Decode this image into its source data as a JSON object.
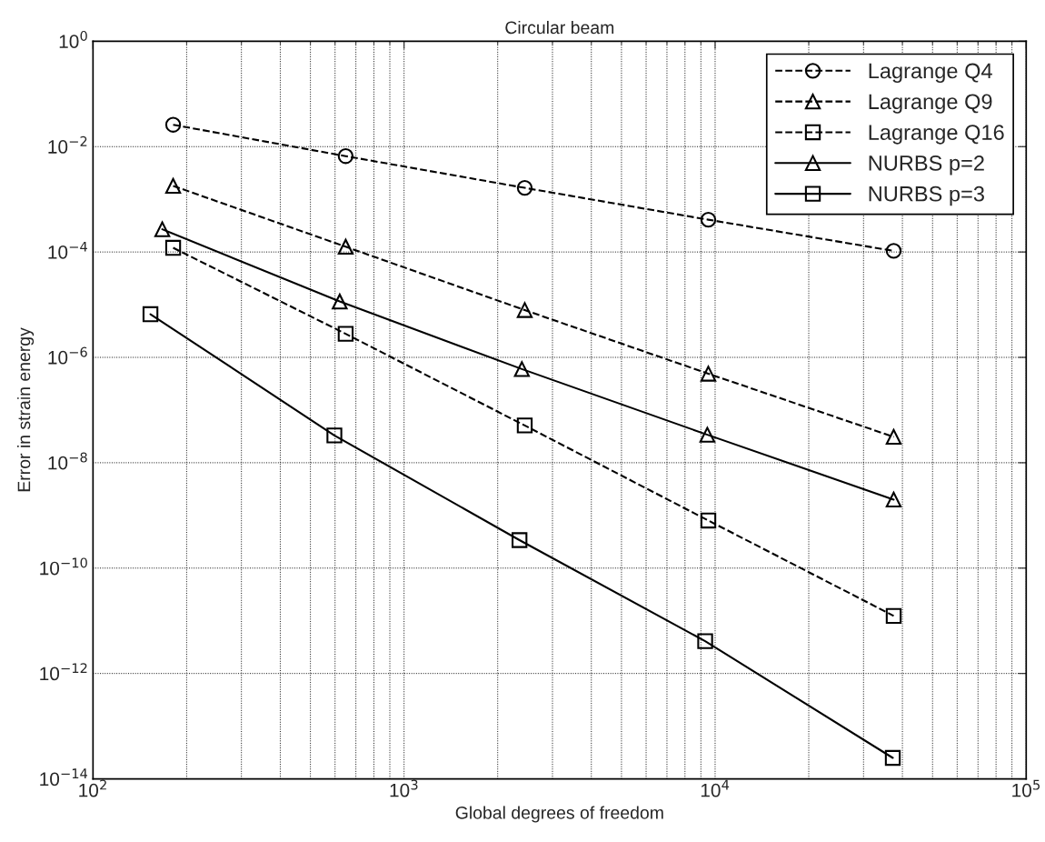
{
  "chart_data": {
    "type": "line",
    "title": "Circular beam",
    "xlabel": "Global degrees of freedom",
    "ylabel": "Error in strain energy",
    "log": "xy",
    "grid": true,
    "legend": "top right",
    "xlim": [
      100,
      100000
    ],
    "ylim": [
      1e-14,
      1
    ],
    "xticks": [
      {
        "value": 100,
        "label": "10$^{2}$"
      },
      {
        "value": 1000,
        "label": "10$^{3}$"
      },
      {
        "value": 10000,
        "label": "10$^{4}$"
      },
      {
        "value": 100000,
        "label": "10$^{5}$"
      }
    ],
    "yticks": [
      {
        "value": 1e-14,
        "label": "10$^{−14}$"
      },
      {
        "value": 1e-12,
        "label": "10$^{−12}$"
      },
      {
        "value": 1e-10,
        "label": "10$^{−10}$"
      },
      {
        "value": 1e-08,
        "label": "10$^{−8}$"
      },
      {
        "value": 1e-06,
        "label": "10$^{−6}$"
      },
      {
        "value": 0.0001,
        "label": "10$^{−4}$"
      },
      {
        "value": 0.01,
        "label": "10$^{−2}$"
      },
      {
        "value": 1,
        "label": "10$^{0}$"
      }
    ],
    "series": [
      {
        "name": "Lagrange Q4",
        "color": "#000000",
        "marker": "circle",
        "line_style": "dashed",
        "x": [
          181,
          649,
          2443,
          9510,
          37500
        ],
        "values": [
          0.026,
          0.0066,
          0.00165,
          0.00041,
          0.000105
        ]
      },
      {
        "name": "Lagrange Q9",
        "color": "#000000",
        "marker": "triangle",
        "line_style": "dashed",
        "x": [
          181,
          649,
          2443,
          9510,
          37500
        ],
        "values": [
          0.0018,
          0.000126,
          7.9e-06,
          4.9e-07,
          3.1e-08
        ]
      },
      {
        "name": "Lagrange Q16",
        "color": "#000000",
        "marker": "square",
        "line_style": "dashed",
        "x": [
          181,
          649,
          2443,
          9510,
          37500
        ],
        "values": [
          0.00012,
          2.8e-06,
          5.1e-08,
          8e-10,
          1.24e-11
        ]
      },
      {
        "name": "NURBS p=2",
        "color": "#000000",
        "marker": "triangle",
        "line_style": "solid",
        "x": [
          167,
          621,
          2392,
          9440,
          37500
        ],
        "values": [
          0.00027,
          1.15e-05,
          6e-07,
          3.4e-08,
          2e-09
        ]
      },
      {
        "name": "NURBS p=3",
        "color": "#000000",
        "marker": "square",
        "line_style": "solid",
        "x": [
          153,
          597,
          2350,
          9290,
          37250
        ],
        "values": [
          6.6e-06,
          3.3e-08,
          3.4e-10,
          4.1e-12,
          2.5e-14
        ]
      }
    ]
  }
}
